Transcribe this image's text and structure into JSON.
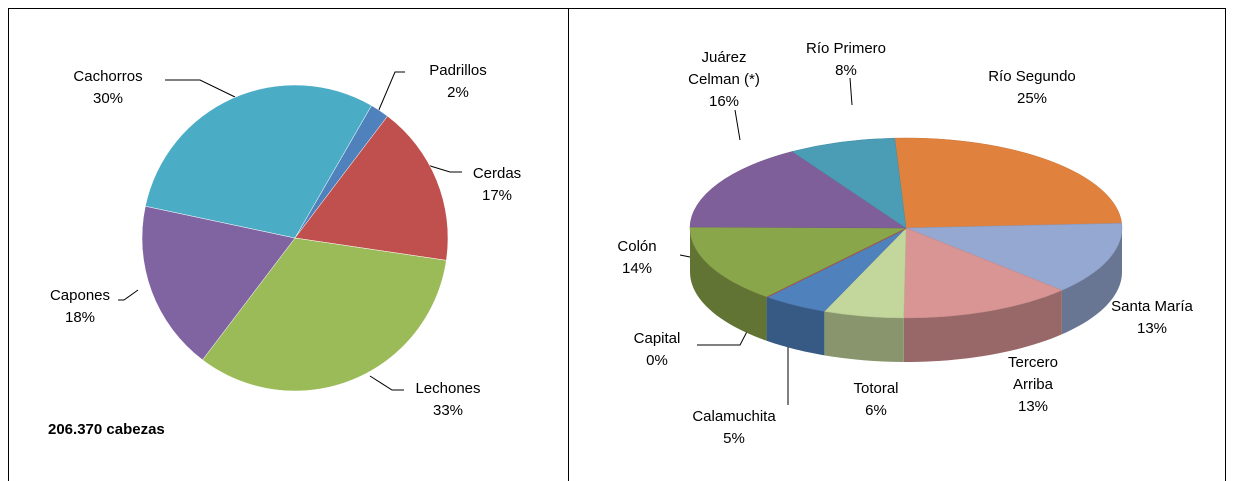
{
  "chart_data": [
    {
      "type": "pie",
      "categories": [
        "Padrillos",
        "Cerdas",
        "Lechones",
        "Capones",
        "Cachorros"
      ],
      "values": [
        2,
        17,
        33,
        18,
        30
      ],
      "value_labels": [
        "2%",
        "17%",
        "33%",
        "18%",
        "30%"
      ],
      "colors": [
        "#4f81bd",
        "#c0504d",
        "#9bbb59",
        "#8064a2",
        "#4bacc6"
      ],
      "annotation": "206.370 cabezas"
    },
    {
      "type": "pie3d",
      "categories": [
        "Río Segundo",
        "Santa María",
        "Tercero Arriba",
        "Totoral",
        "Calamuchita",
        "Capital",
        "Colón",
        "Juárez Celman (*)",
        "Río Primero"
      ],
      "values": [
        25,
        13,
        13,
        6,
        5,
        0,
        14,
        16,
        8
      ],
      "value_labels": [
        "25%",
        "13%",
        "13%",
        "6%",
        "5%",
        "0%",
        "14%",
        "16%",
        "8%"
      ],
      "colors": [
        "#e0823d",
        "#95a8d2",
        "#d99594",
        "#c3d69b",
        "#4f81bd",
        "#c0504d",
        "#8aa64a",
        "#7f5f9a",
        "#4a9db5"
      ]
    }
  ]
}
